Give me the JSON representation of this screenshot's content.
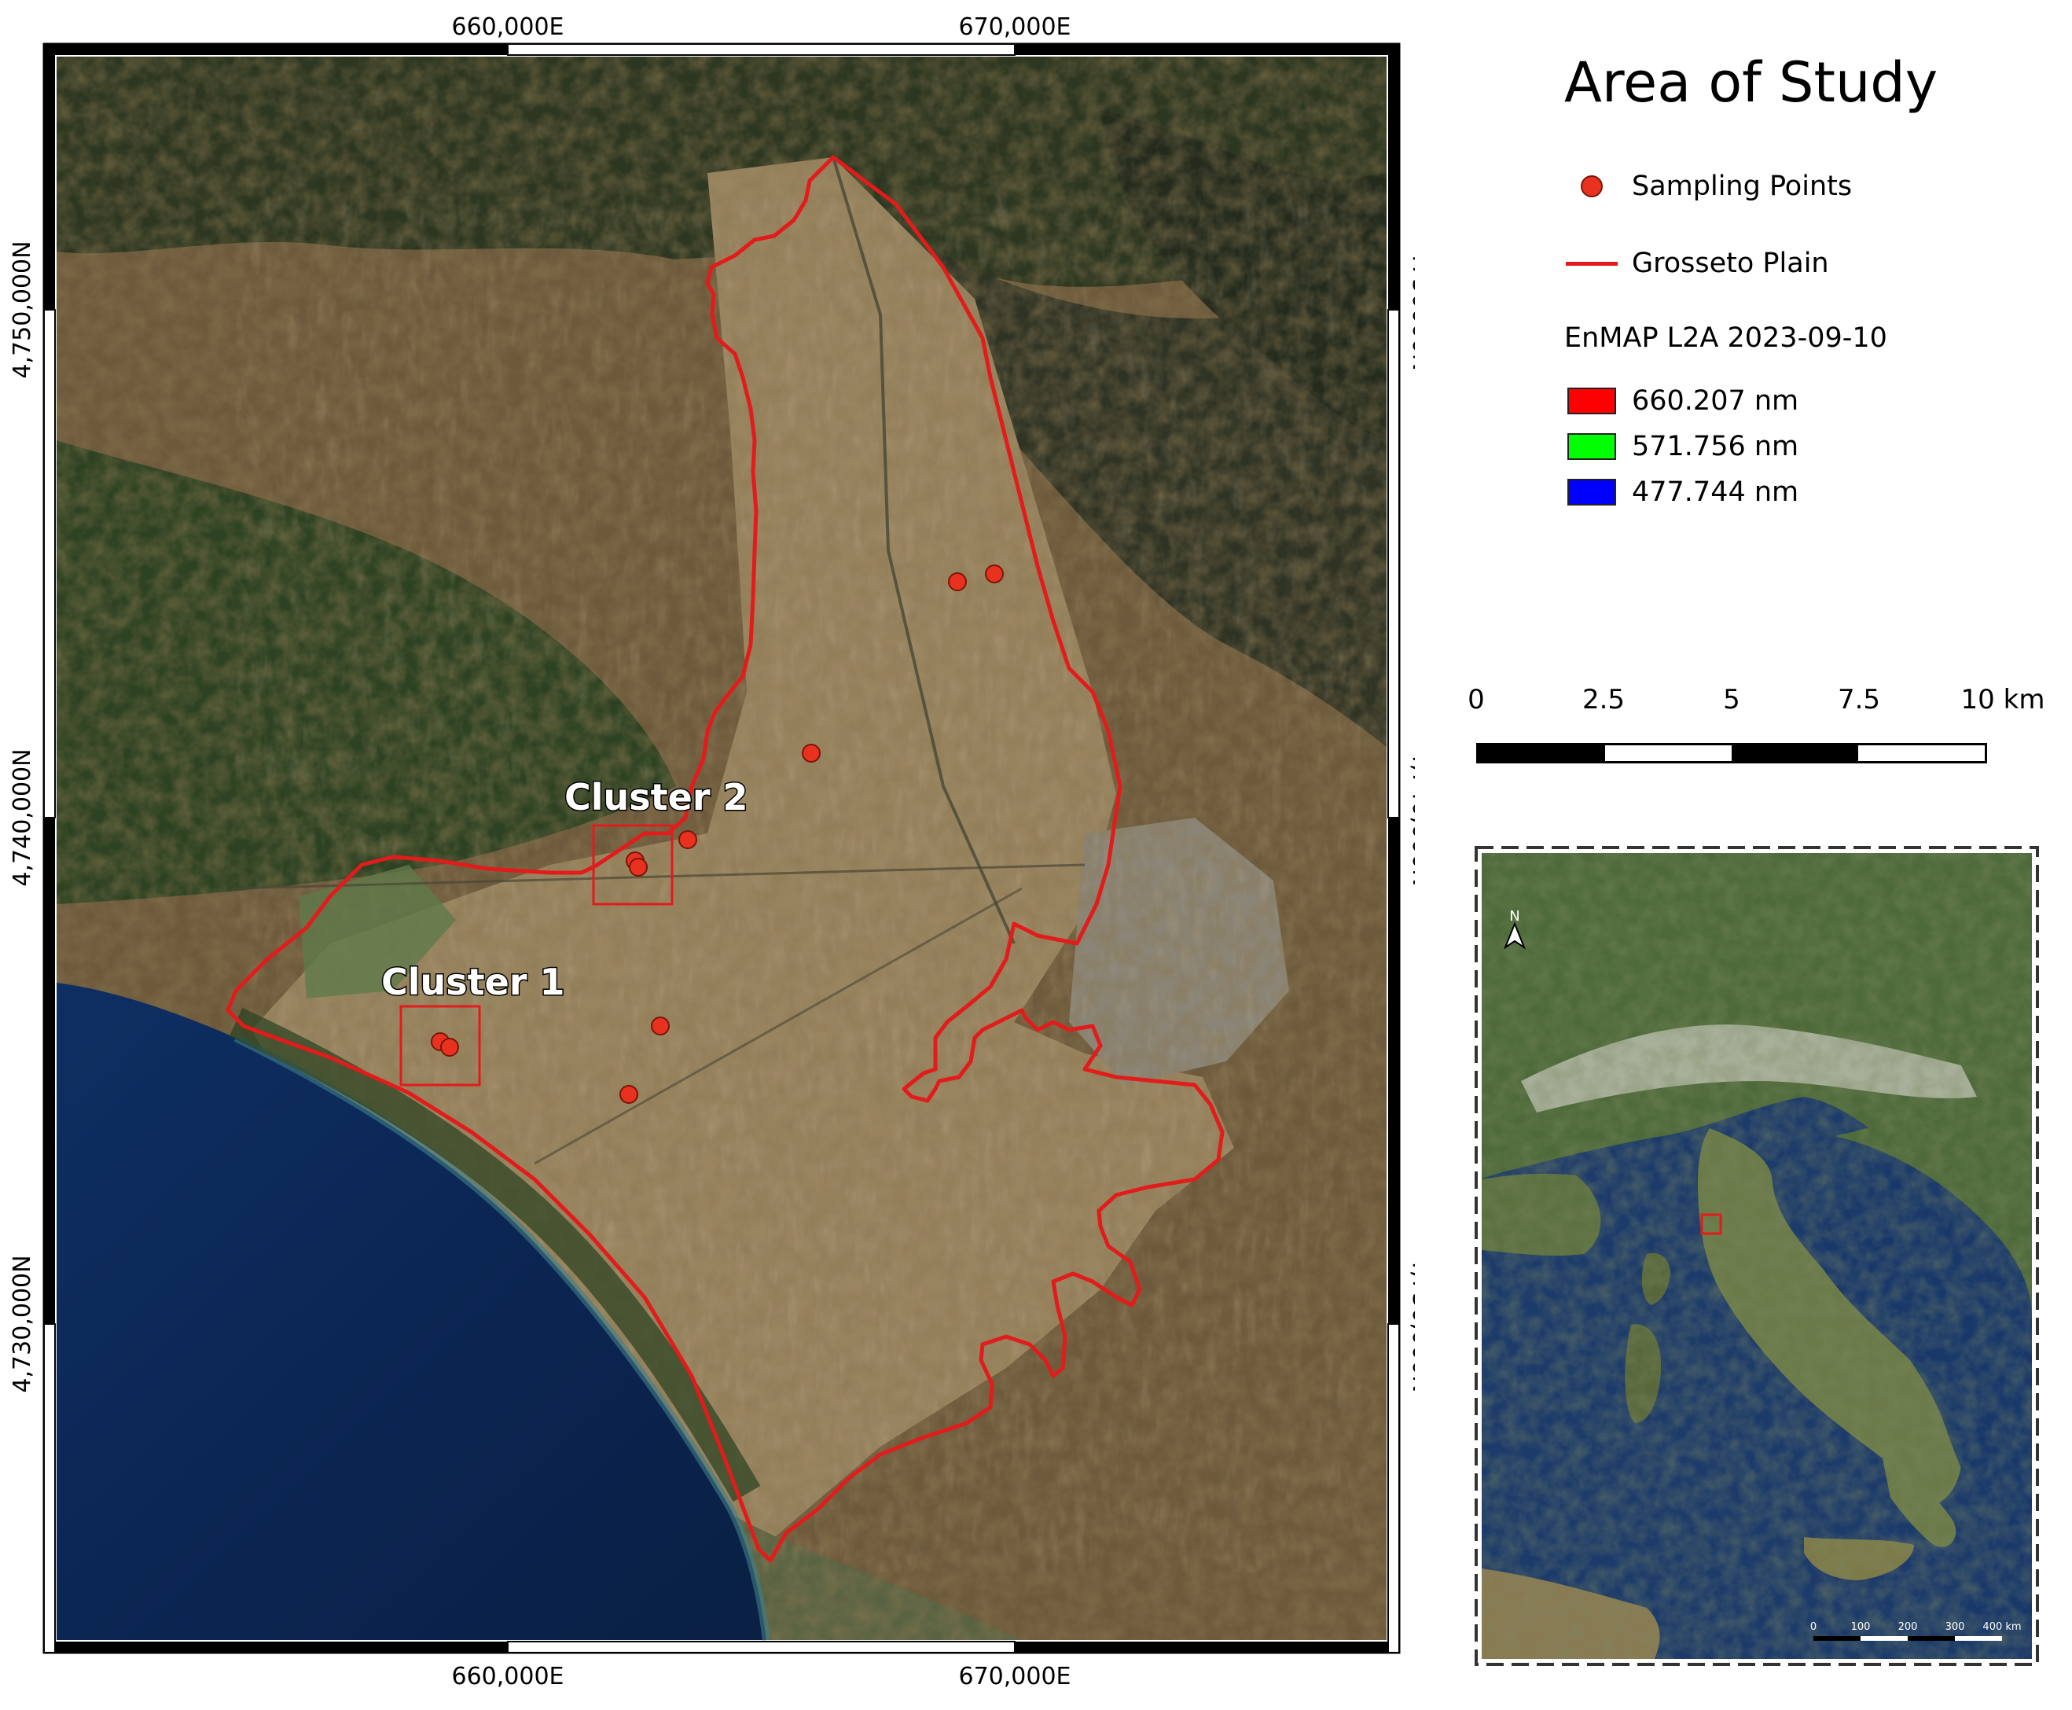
{
  "main_map": {
    "x_ticks": [
      "660,000E",
      "670,000E"
    ],
    "y_ticks_left": [
      "4,750,000N",
      "4,740,000N",
      "4,730,000N"
    ],
    "y_ticks_right": [
      "4750000N",
      "4,740,000N",
      "4,730,000N"
    ],
    "cluster_labels": [
      "Cluster 1",
      "Cluster 2"
    ],
    "sampling_point_count": 11
  },
  "legend": {
    "title": "Area of Study",
    "items": [
      {
        "label": "Sampling Points",
        "symbol": "dot",
        "color": "#e8321f"
      },
      {
        "label": "Grosseto Plain",
        "symbol": "line",
        "color": "#e21b1b"
      }
    ],
    "group_title": "EnMAP L2A 2023-09-10",
    "bands": [
      {
        "label": "660.207 nm",
        "color": "#ff0000"
      },
      {
        "label": "571.756 nm",
        "color": "#00ff00"
      },
      {
        "label": "477.744 nm",
        "color": "#0000ff"
      }
    ]
  },
  "scale_bar": {
    "labels": [
      "0",
      "2.5",
      "5",
      "7.5",
      "10 km"
    ]
  },
  "inset": {
    "north_label": "N",
    "scale_labels": [
      "0",
      "100",
      "200",
      "300",
      "400 km"
    ]
  }
}
